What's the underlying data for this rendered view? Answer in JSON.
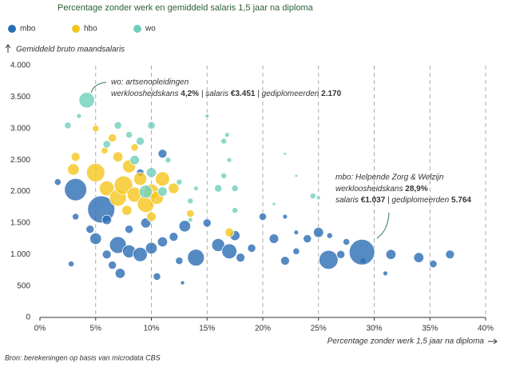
{
  "chart_data": {
    "type": "bubble",
    "subtitle": "Percentage zonder werk en gemiddeld salaris 1,5 jaar na diploma",
    "ylabel": "Gemiddeld bruto maandsalaris",
    "xlabel": "Percentage zonder werk 1,5 jaar na diploma",
    "source": "Bron: berekeningen op basis van microdata CBS",
    "xlim": [
      0,
      40
    ],
    "xticks": [
      {
        "value": 0,
        "label": "0%"
      },
      {
        "value": 5,
        "label": "5%"
      },
      {
        "value": 10,
        "label": "10%"
      },
      {
        "value": 15,
        "label": "15%"
      },
      {
        "value": 20,
        "label": "20%"
      },
      {
        "value": 25,
        "label": "25%"
      },
      {
        "value": 30,
        "label": "30%"
      },
      {
        "value": 35,
        "label": "35%"
      },
      {
        "value": 40,
        "label": "40%"
      }
    ],
    "ylim": [
      0,
      4000
    ],
    "yticks": [
      0,
      500,
      {
        "value": 1000,
        "label": "1.000"
      },
      {
        "value": 1500,
        "label": "1.500"
      },
      {
        "value": 2000,
        "label": "2.000"
      },
      {
        "value": 2500,
        "label": "2.500"
      },
      {
        "value": 3000,
        "label": "3.000"
      },
      {
        "value": 3500,
        "label": "3.500"
      },
      {
        "value": 4000,
        "label": "4.000"
      }
    ],
    "xgrid": "dashed",
    "series": [
      {
        "name": "mbo",
        "color": "#2a6db4",
        "x": [
          3.2,
          5.5,
          4.5,
          6,
          5,
          7,
          8,
          7.2,
          6.5,
          9,
          10,
          11,
          12,
          13,
          14,
          15,
          16,
          17,
          17.5,
          18,
          19,
          20,
          21,
          22,
          23,
          24,
          25,
          25.9,
          27,
          27.5,
          29,
          28.9,
          31.5,
          34,
          35.3,
          36.8,
          31,
          26,
          9.5,
          8,
          6,
          10.5,
          12.5,
          12.8,
          2.8,
          3.2,
          1.6,
          11,
          9,
          22,
          23
        ],
        "y": [
          2030,
          1715,
          1400,
          1550,
          1250,
          1150,
          1050,
          700,
          830,
          1000,
          1100,
          1200,
          1280,
          1450,
          950,
          1500,
          1150,
          1050,
          1300,
          950,
          1100,
          1600,
          1250,
          900,
          1050,
          1250,
          1350,
          915,
          1000,
          1200,
          900,
          1037,
          1000,
          950,
          850,
          1000,
          700,
          1300,
          1500,
          1400,
          1000,
          650,
          900,
          550,
          850,
          1600,
          2150,
          2600,
          2300,
          1600,
          1350
        ],
        "size": [
          4400,
          6500,
          600,
          800,
          1200,
          2500,
          1500,
          900,
          600,
          1800,
          1200,
          900,
          700,
          1200,
          2500,
          600,
          1500,
          2000,
          900,
          700,
          600,
          500,
          800,
          700,
          400,
          600,
          900,
          3200,
          600,
          400,
          300,
          5764,
          900,
          900,
          500,
          700,
          200,
          300,
          900,
          600,
          700,
          500,
          500,
          150,
          300,
          400,
          400,
          700,
          500,
          200,
          200
        ]
      },
      {
        "name": "hbo",
        "color": "#f4c51c",
        "x": [
          3,
          3.2,
          5,
          6,
          7,
          7.5,
          8,
          8.5,
          9,
          9.5,
          10,
          10.5,
          11,
          7,
          6.5,
          5,
          8.5,
          12,
          17,
          13.5,
          10,
          5.8,
          7.8
        ],
        "y": [
          2350,
          2550,
          2300,
          2050,
          1900,
          2100,
          2400,
          1950,
          2200,
          1800,
          2000,
          1900,
          2200,
          2550,
          2850,
          3000,
          2700,
          2050,
          1350,
          1650,
          1600,
          2650,
          1700
        ],
        "size": [
          1200,
          700,
          3000,
          2000,
          2500,
          3000,
          1500,
          2000,
          1500,
          2500,
          2000,
          1500,
          1800,
          900,
          600,
          400,
          500,
          1000,
          700,
          500,
          800,
          400,
          900
        ]
      },
      {
        "name": "wo",
        "color": "#6fd0bd",
        "x": [
          4.2,
          2.5,
          3.5,
          7,
          8,
          9,
          10,
          8.5,
          6,
          10,
          9.5,
          11,
          11.5,
          12.5,
          13.5,
          14,
          16,
          16.5,
          17,
          17.5,
          16.5,
          16.8,
          15,
          24.5,
          25,
          21,
          22,
          23,
          17.5,
          13.5
        ],
        "y": [
          3451,
          3050,
          3200,
          3050,
          2900,
          2800,
          3050,
          2500,
          2750,
          2300,
          2000,
          2000,
          2500,
          2150,
          1850,
          2050,
          2050,
          2250,
          2500,
          2050,
          2800,
          2900,
          3200,
          1930,
          1900,
          1800,
          2600,
          2250,
          1700,
          1550
        ],
        "size": [
          2170,
          400,
          200,
          500,
          400,
          600,
          500,
          800,
          500,
          900,
          1500,
          800,
          300,
          300,
          300,
          200,
          500,
          300,
          200,
          400,
          300,
          200,
          150,
          300,
          150,
          100,
          80,
          80,
          300,
          200
        ]
      }
    ],
    "annotations": [
      {
        "title": "wo: artsenopleidingen",
        "parts": [
          "werkloosheidskans ",
          "4,2%",
          " | salaris ",
          "€3.451",
          " | gediplomeerden ",
          "2.170"
        ]
      },
      {
        "title": "mbo: Helpende Zorg & Welzijn",
        "parts": [
          "werkloosheidskans ",
          "28,9%",
          "salaris ",
          "€1.037",
          " | gediplomeerden ",
          "5.764"
        ]
      }
    ]
  }
}
